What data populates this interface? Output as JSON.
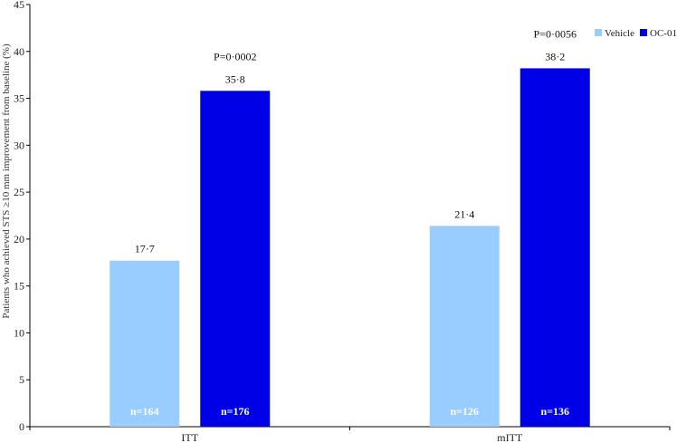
{
  "chart_data": {
    "type": "bar",
    "categories": [
      "ITT",
      "mITT"
    ],
    "series": [
      {
        "name": "Vehicle",
        "values": [
          17.7,
          21.4
        ],
        "labels": [
          "17·7",
          "21·4"
        ],
        "n": [
          "n=164",
          "n=126"
        ],
        "color": "#99ccff"
      },
      {
        "name": "OC-01",
        "values": [
          35.8,
          38.2
        ],
        "labels": [
          "35·8",
          "38·2"
        ],
        "n": [
          "n=176",
          "n=136"
        ],
        "color": "#0000e6"
      }
    ],
    "pvalues": [
      "P=0·0002",
      "P=0·0056"
    ],
    "ylabel": "Patients who achieved STS ≥10 mm improvement from baseline (%)",
    "ylim": [
      0,
      45
    ],
    "yticks": [
      0,
      5,
      10,
      15,
      20,
      25,
      30,
      35,
      40,
      45
    ],
    "legend_position": "top-right",
    "grid": false
  }
}
